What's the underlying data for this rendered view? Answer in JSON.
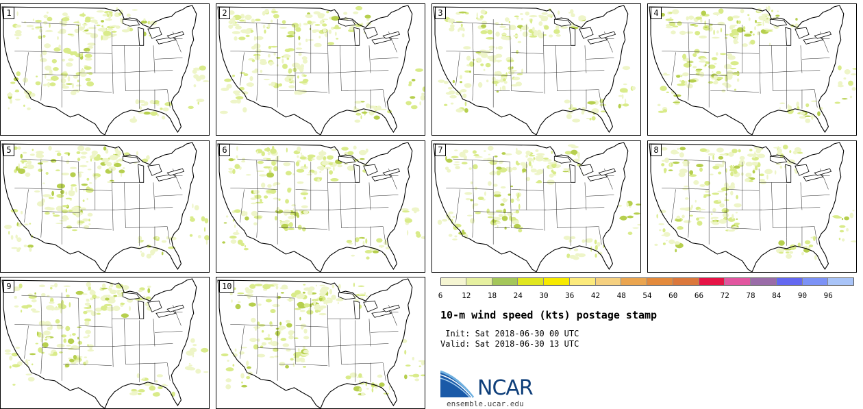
{
  "panels": [
    {
      "label": "1"
    },
    {
      "label": "2"
    },
    {
      "label": "3"
    },
    {
      "label": "4"
    },
    {
      "label": "5"
    },
    {
      "label": "6"
    },
    {
      "label": "7"
    },
    {
      "label": "8"
    },
    {
      "label": "9"
    },
    {
      "label": "10"
    }
  ],
  "colorbar": {
    "ticks": [
      "6",
      "12",
      "18",
      "24",
      "30",
      "36",
      "42",
      "48",
      "54",
      "60",
      "66",
      "72",
      "78",
      "84",
      "90",
      "96"
    ],
    "colors": [
      "#f5f5d2",
      "#e6f0a0",
      "#a4c65a",
      "#e0e620",
      "#f7ea00",
      "#fcea7c",
      "#f5d080",
      "#eaa550",
      "#e38a3c",
      "#db783c",
      "#e61446",
      "#e256a0",
      "#9a6ca8",
      "#6468f0",
      "#7c92f6",
      "#a9c4f8"
    ]
  },
  "title": "10-m wind speed (kts) postage stamp",
  "init": " Init: Sat 2018-06-30 00 UTC",
  "valid": "Valid: Sat 2018-06-30 13 UTC",
  "logo": {
    "text": "NCAR",
    "name": "ncar-logo-icon"
  },
  "site": "ensemble.ucar.edu",
  "map_colors": {
    "land_fill": "#ffffff",
    "wind_light": "#eef5c8",
    "wind_mid": "#d9eb8a",
    "wind_strong": "#b6cf4e",
    "border": "#000000"
  }
}
